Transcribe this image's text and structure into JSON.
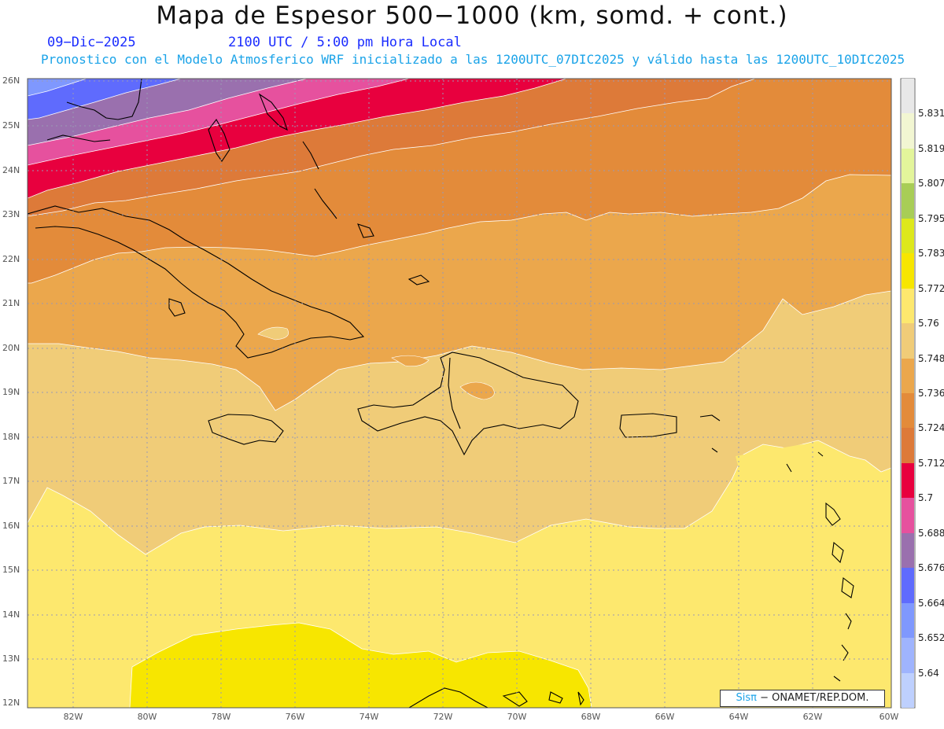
{
  "title": "Mapa de Espesor 500−1000 (km, somd. + cont.)",
  "date": "09−Dic−2025",
  "time": "2100 UTC / 5:00 pm Hora Local",
  "subtitle": "Pronostico con el Modelo Atmosferico WRF inicializado a las 1200UTC_07DIC2025 y válido hasta las  1200UTC_10DIC2025",
  "credit": {
    "brand": "Sisπ",
    "text": " − ONAMET/REP.DOM."
  },
  "latitude_labels": [
    "26N",
    "25N",
    "24N",
    "23N",
    "22N",
    "21N",
    "20N",
    "19N",
    "18N",
    "17N",
    "16N",
    "15N",
    "14N",
    "13N",
    "12N"
  ],
  "longitude_labels": [
    "82W",
    "80W",
    "78W",
    "76W",
    "74W",
    "72W",
    "70W",
    "68W",
    "66W",
    "64W",
    "62W",
    "60W"
  ],
  "colorbar": {
    "labels": [
      "5.831",
      "5.819",
      "5.807",
      "5.795",
      "5.783",
      "5.772",
      "5.76",
      "5.748",
      "5.736",
      "5.724",
      "5.712",
      "5.7",
      "5.688",
      "5.676",
      "5.664",
      "5.652",
      "5.64"
    ],
    "colors": [
      "#e8e8e8",
      "#f2f6d2",
      "#e3f59b",
      "#a8cd56",
      "#dde81c",
      "#f7e600",
      "#fde86e",
      "#f0cc78",
      "#eba74c",
      "#e38b3a",
      "#dd7a39",
      "#e8003e",
      "#e6519e",
      "#9a70ae",
      "#5f6bfd",
      "#7f98fe",
      "#9fb4fe",
      "#bed0fe"
    ]
  }
}
